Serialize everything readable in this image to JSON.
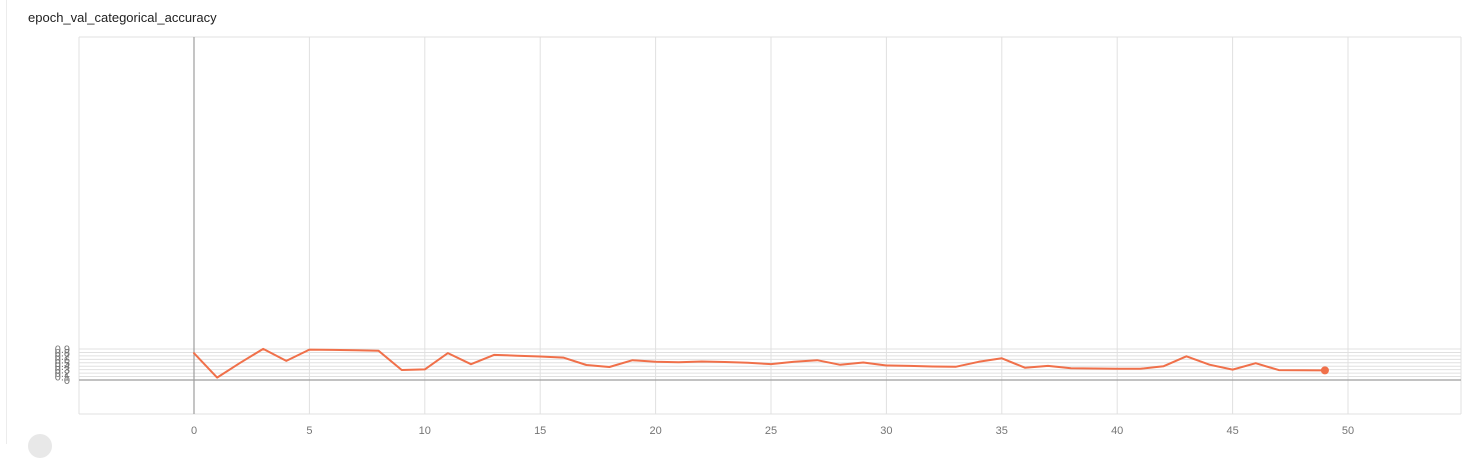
{
  "chart_data": {
    "type": "line",
    "title": "epoch_val_categorical_accuracy",
    "xlabel": "",
    "ylabel": "",
    "xlim": [
      -5,
      55
    ],
    "ylim": [
      -0.1,
      1.0
    ],
    "x_ticks": [
      0,
      5,
      10,
      15,
      20,
      25,
      30,
      35,
      40,
      45,
      50
    ],
    "y_ticks": [
      0,
      0.1,
      0.2,
      0.3,
      0.4,
      0.5,
      0.6,
      0.7,
      0.8,
      0.9
    ],
    "grid": true,
    "legend": "none",
    "series": [
      {
        "color": "#f0704a",
        "x": [
          0,
          1,
          2,
          3,
          4,
          5,
          6,
          7,
          8,
          9,
          10,
          11,
          12,
          13,
          14,
          15,
          16,
          17,
          18,
          19,
          20,
          21,
          22,
          23,
          24,
          25,
          26,
          27,
          28,
          29,
          30,
          31,
          32,
          33,
          34,
          35,
          36,
          37,
          38,
          39,
          40,
          41,
          42,
          43,
          44,
          45,
          46,
          47,
          48,
          49
        ],
        "y": [
          0.78,
          0.07,
          0.5,
          0.905,
          0.555,
          0.885,
          0.876,
          0.864,
          0.85,
          0.29,
          0.307,
          0.782,
          0.458,
          0.73,
          0.707,
          0.684,
          0.651,
          0.435,
          0.378,
          0.575,
          0.53,
          0.516,
          0.537,
          0.523,
          0.5,
          0.461,
          0.531,
          0.575,
          0.443,
          0.51,
          0.422,
          0.409,
          0.392,
          0.383,
          0.529,
          0.632,
          0.358,
          0.411,
          0.34,
          0.333,
          0.329,
          0.326,
          0.398,
          0.69,
          0.446,
          0.302,
          0.487,
          0.287,
          0.285,
          0.28
        ]
      }
    ]
  }
}
